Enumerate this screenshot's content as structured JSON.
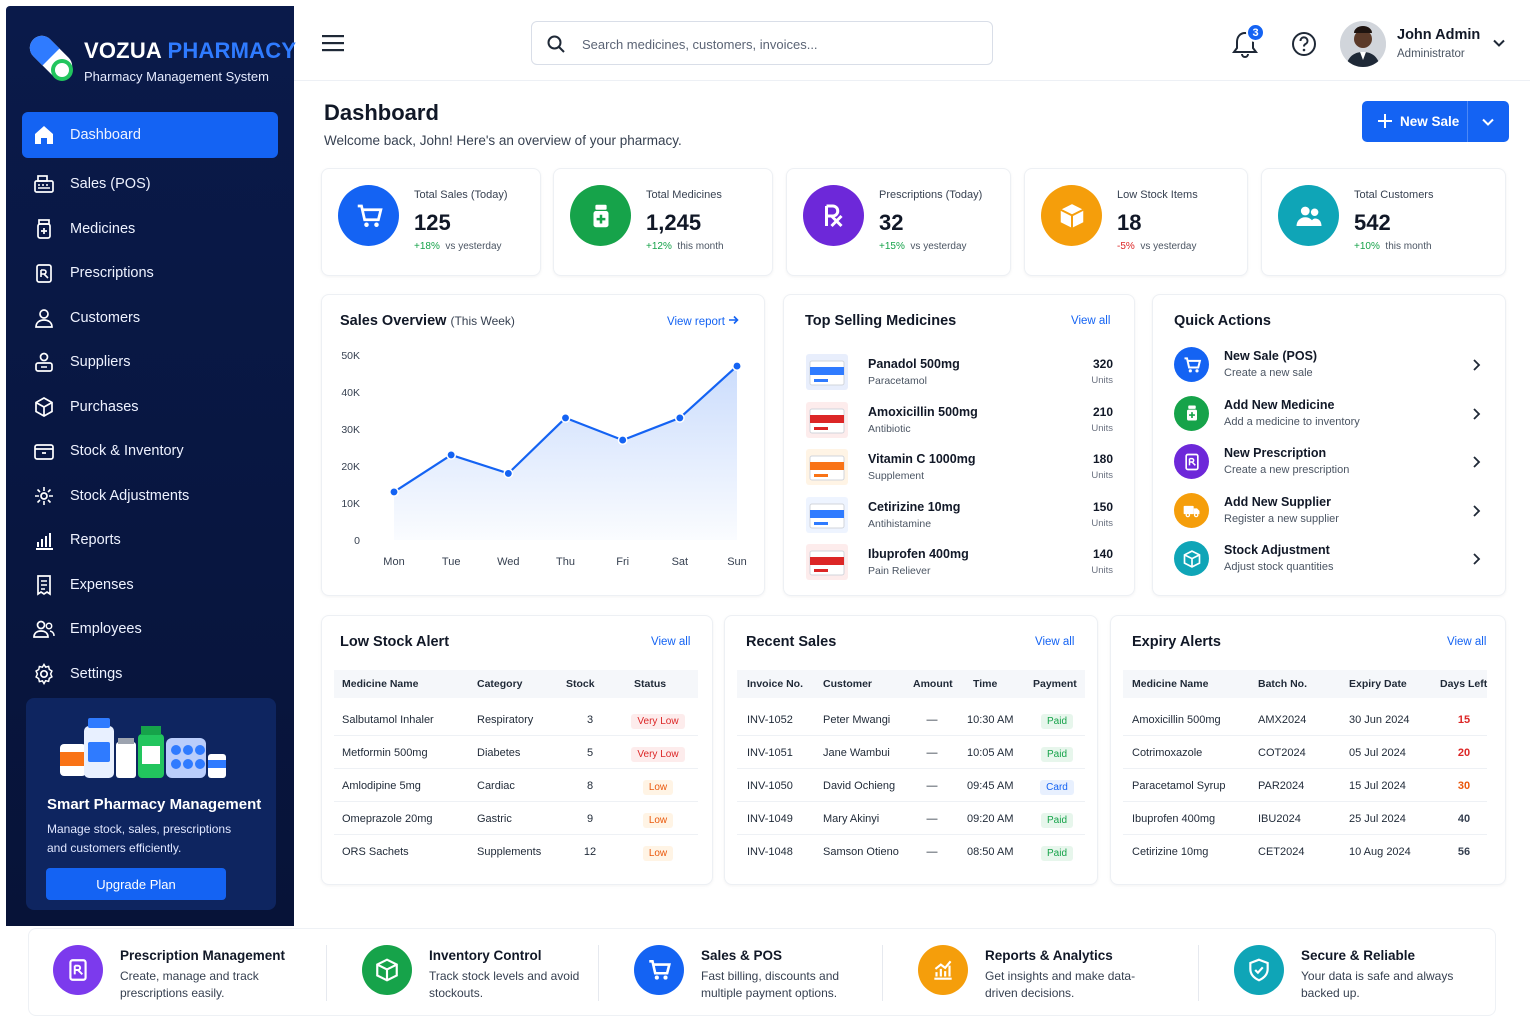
{
  "brand": {
    "name1": "VOZUA",
    "name2": "PHARMACY",
    "subtitle": "Pharmacy Management System"
  },
  "sidebar": {
    "items": [
      {
        "label": "Dashboard",
        "icon": "home-icon",
        "active": true
      },
      {
        "label": "Sales (POS)",
        "icon": "cash-register-icon"
      },
      {
        "label": "Medicines",
        "icon": "medicine-bottle-icon"
      },
      {
        "label": "Prescriptions",
        "icon": "prescription-icon"
      },
      {
        "label": "Customers",
        "icon": "user-icon"
      },
      {
        "label": "Suppliers",
        "icon": "supplier-icon"
      },
      {
        "label": "Purchases",
        "icon": "box-icon"
      },
      {
        "label": "Stock & Inventory",
        "icon": "inventory-box-icon"
      },
      {
        "label": "Stock Adjustments",
        "icon": "adjust-icon"
      },
      {
        "label": "Reports",
        "icon": "bar-chart-icon"
      },
      {
        "label": "Expenses",
        "icon": "receipt-icon"
      },
      {
        "label": "Employees",
        "icon": "employees-icon"
      },
      {
        "label": "Settings",
        "icon": "gear-icon"
      }
    ],
    "promo": {
      "title": "Smart Pharmacy Management",
      "text": "Manage stock, sales, prescriptions and customers efficiently.",
      "button": "Upgrade Plan"
    }
  },
  "header": {
    "search_placeholder": "Search medicines, customers, invoices...",
    "notifications": "3",
    "user_name": "John Admin",
    "user_role": "Administrator"
  },
  "page": {
    "title": "Dashboard",
    "subtitle": "Welcome back, John! Here's an overview of your pharmacy.",
    "new_sale": "New Sale"
  },
  "stats": [
    {
      "title": "Total Sales (Today)",
      "value": "125",
      "change": "+18%",
      "period": "vs yesterday",
      "color": "#1463f3"
    },
    {
      "title": "Total Medicines",
      "value": "1,245",
      "change": "+12%",
      "period": "this month",
      "color": "#16a34a"
    },
    {
      "title": "Prescriptions (Today)",
      "value": "32",
      "change": "+15%",
      "period": "vs yesterday",
      "color": "#6d28d9"
    },
    {
      "title": "Low Stock Items",
      "value": "18",
      "change": "-5%",
      "period": "vs yesterday",
      "color": "#f59e0b"
    },
    {
      "title": "Total Customers",
      "value": "542",
      "change": "+10%",
      "period": "this month",
      "color": "#0fa5b7"
    }
  ],
  "sales_overview": {
    "title": "Sales Overview",
    "subtitle": "(This Week)",
    "link": "View report"
  },
  "chart_data": {
    "type": "area",
    "categories": [
      "Mon",
      "Tue",
      "Wed",
      "Thu",
      "Fri",
      "Sat",
      "Sun"
    ],
    "values": [
      13000,
      23000,
      18000,
      33000,
      27000,
      33000,
      47000
    ],
    "yticks": [
      "0",
      "10K",
      "20K",
      "30K",
      "40K",
      "50K"
    ],
    "ylim": [
      0,
      50000
    ],
    "color": "#1463f3",
    "grid": false
  },
  "top_selling": {
    "title": "Top Selling Medicines",
    "link": "View all",
    "items": [
      {
        "name": "Panadol 500mg",
        "category": "Paracetamol",
        "qty": "320",
        "unit": "Units"
      },
      {
        "name": "Amoxicillin 500mg",
        "category": "Antibiotic",
        "qty": "210",
        "unit": "Units"
      },
      {
        "name": "Vitamin C 1000mg",
        "category": "Supplement",
        "qty": "180",
        "unit": "Units"
      },
      {
        "name": "Cetirizine 10mg",
        "category": "Antihistamine",
        "qty": "150",
        "unit": "Units"
      },
      {
        "name": "Ibuprofen 400mg",
        "category": "Pain Reliever",
        "qty": "140",
        "unit": "Units"
      }
    ]
  },
  "quick_actions": {
    "title": "Quick Actions",
    "items": [
      {
        "title": "New Sale (POS)",
        "desc": "Create a new sale",
        "color": "#1463f3"
      },
      {
        "title": "Add New Medicine",
        "desc": "Add a medicine to inventory",
        "color": "#16a34a"
      },
      {
        "title": "New Prescription",
        "desc": "Create a new prescription",
        "color": "#6d28d9"
      },
      {
        "title": "Add New Supplier",
        "desc": "Register a new supplier",
        "color": "#f59e0b"
      },
      {
        "title": "Stock Adjustment",
        "desc": "Adjust stock quantities",
        "color": "#0fa5b7"
      }
    ]
  },
  "low_stock": {
    "title": "Low Stock Alert",
    "link": "View all",
    "headers": [
      "Medicine Name",
      "Category",
      "Stock",
      "Status"
    ],
    "rows": [
      {
        "name": "Salbutamol Inhaler",
        "category": "Respiratory",
        "stock": "3",
        "status": "Very Low"
      },
      {
        "name": "Metformin 500mg",
        "category": "Diabetes",
        "stock": "5",
        "status": "Very Low"
      },
      {
        "name": "Amlodipine 5mg",
        "category": "Cardiac",
        "stock": "8",
        "status": "Low"
      },
      {
        "name": "Omeprazole 20mg",
        "category": "Gastric",
        "stock": "9",
        "status": "Low"
      },
      {
        "name": "ORS Sachets",
        "category": "Supplements",
        "stock": "12",
        "status": "Low"
      }
    ]
  },
  "recent_sales": {
    "title": "Recent Sales",
    "link": "View all",
    "headers": [
      "Invoice No.",
      "Customer",
      "Amount",
      "Time",
      "Payment"
    ],
    "rows": [
      {
        "invoice": "INV-1052",
        "customer": "Peter Mwangi",
        "amount": "—",
        "time": "10:30 AM",
        "payment": "Paid"
      },
      {
        "invoice": "INV-1051",
        "customer": "Jane Wambui",
        "amount": "—",
        "time": "10:05 AM",
        "payment": "Paid"
      },
      {
        "invoice": "INV-1050",
        "customer": "David Ochieng",
        "amount": "—",
        "time": "09:45 AM",
        "payment": "Card"
      },
      {
        "invoice": "INV-1049",
        "customer": "Mary Akinyi",
        "amount": "—",
        "time": "09:20 AM",
        "payment": "Paid"
      },
      {
        "invoice": "INV-1048",
        "customer": "Samson Otieno",
        "amount": "—",
        "time": "08:50 AM",
        "payment": "Paid"
      }
    ]
  },
  "expiry": {
    "title": "Expiry Alerts",
    "link": "View all",
    "headers": [
      "Medicine Name",
      "Batch No.",
      "Expiry Date",
      "Days Left"
    ],
    "rows": [
      {
        "name": "Amoxicillin 500mg",
        "batch": "AMX2024",
        "date": "30 Jun 2024",
        "days": "15",
        "color": "#dc2626"
      },
      {
        "name": "Cotrimoxazole",
        "batch": "COT2024",
        "date": "05 Jul 2024",
        "days": "20",
        "color": "#dc2626"
      },
      {
        "name": "Paracetamol Syrup",
        "batch": "PAR2024",
        "date": "15 Jul 2024",
        "days": "30",
        "color": "#ea580c"
      },
      {
        "name": "Ibuprofen 400mg",
        "batch": "IBU2024",
        "date": "25 Jul 2024",
        "days": "40",
        "color": "#374151"
      },
      {
        "name": "Cetirizine 10mg",
        "batch": "CET2024",
        "date": "10 Aug 2024",
        "days": "56",
        "color": "#374151"
      }
    ]
  },
  "features": [
    {
      "title": "Prescription Management",
      "desc": "Create, manage and track prescriptions easily.",
      "color": "#7c3aed"
    },
    {
      "title": "Inventory Control",
      "desc": "Track stock levels and avoid stockouts.",
      "color": "#16a34a"
    },
    {
      "title": "Sales & POS",
      "desc": "Fast billing, discounts and multiple payment options.",
      "color": "#1463f3"
    },
    {
      "title": "Reports & Analytics",
      "desc": "Get insights and make data-driven decisions.",
      "color": "#f59e0b"
    },
    {
      "title": "Secure & Reliable",
      "desc": "Your data is safe and always backed up.",
      "color": "#0fa5b7"
    }
  ]
}
